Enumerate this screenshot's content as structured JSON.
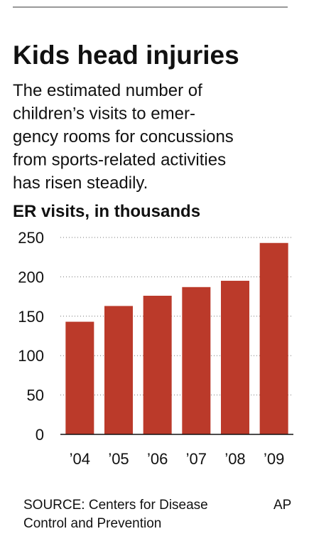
{
  "chart_data": {
    "type": "bar",
    "title": "Kids head injuries",
    "subtitle": [
      "The estimated number of",
      "children’s visits to emer-",
      "gency rooms for concussions",
      "from sports-related activities",
      "has risen steadily."
    ],
    "y_label": "ER visits, in thousands",
    "categories": [
      "’04",
      "’05",
      "’06",
      "’07",
      "’08",
      "’09"
    ],
    "values": [
      143,
      163,
      176,
      187,
      195,
      243
    ],
    "color": "#bb3a2a",
    "ylim": [
      0,
      250
    ],
    "yticks": [
      0,
      50,
      100,
      150,
      200,
      250
    ],
    "grid": true,
    "source": [
      "SOURCE: Centers for Disease",
      "Control and Prevention"
    ],
    "credit": "AP"
  }
}
